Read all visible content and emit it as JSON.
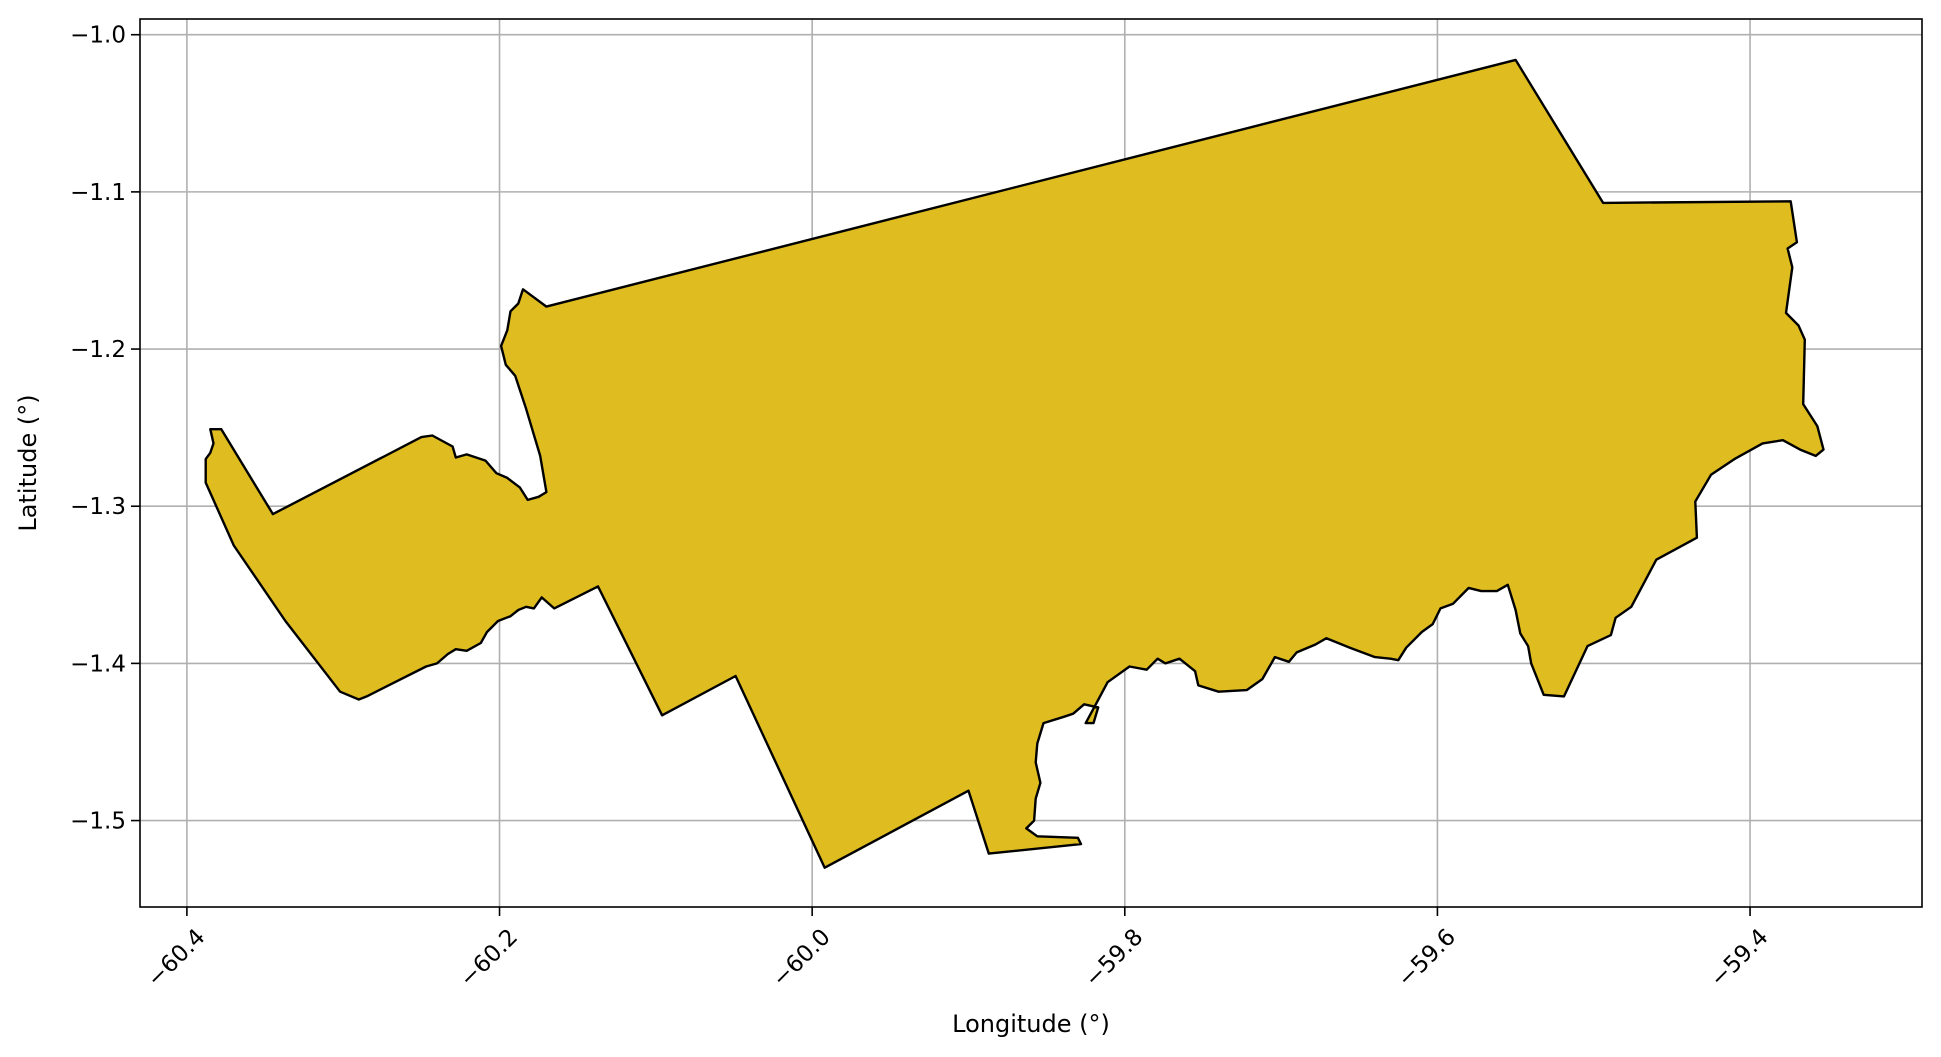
{
  "chart_data": {
    "type": "map",
    "xlabel": "Longitude (°)",
    "ylabel": "Latitude (°)",
    "xlim": [
      -60.43,
      -59.29
    ],
    "ylim": [
      -1.555,
      -0.99
    ],
    "xticks": [
      -60.4,
      -60.2,
      -60.0,
      -59.8,
      -59.6,
      -59.4
    ],
    "xtick_labels": [
      "−60.4",
      "−60.2",
      "−60.0",
      "−59.8",
      "−59.6",
      "−59.4"
    ],
    "yticks": [
      -1.0,
      -1.1,
      -1.2,
      -1.3,
      -1.4,
      -1.5
    ],
    "ytick_labels": [
      "−1.0",
      "−1.1",
      "−1.2",
      "−1.3",
      "−1.4",
      "−1.5"
    ],
    "grid": true,
    "fill_color": "#dfbd20",
    "edge_color": "#000000",
    "polygon": [
      [
        -60.385,
        -1.251
      ],
      [
        -60.378,
        -1.251
      ],
      [
        -60.345,
        -1.305
      ],
      [
        -60.25,
        -1.256
      ],
      [
        -60.243,
        -1.255
      ],
      [
        -60.23,
        -1.262
      ],
      [
        -60.228,
        -1.269
      ],
      [
        -60.221,
        -1.267
      ],
      [
        -60.209,
        -1.271
      ],
      [
        -60.202,
        -1.279
      ],
      [
        -60.195,
        -1.282
      ],
      [
        -60.187,
        -1.288
      ],
      [
        -60.182,
        -1.296
      ],
      [
        -60.175,
        -1.294
      ],
      [
        -60.17,
        -1.291
      ],
      [
        -60.174,
        -1.268
      ],
      [
        -60.183,
        -1.238
      ],
      [
        -60.19,
        -1.217
      ],
      [
        -60.196,
        -1.21
      ],
      [
        -60.199,
        -1.198
      ],
      [
        -60.195,
        -1.188
      ],
      [
        -60.193,
        -1.176
      ],
      [
        -60.188,
        -1.171
      ],
      [
        -60.185,
        -1.162
      ],
      [
        -60.17,
        -1.173
      ],
      [
        -59.55,
        -1.016
      ],
      [
        -59.494,
        -1.107
      ],
      [
        -59.374,
        -1.106
      ],
      [
        -59.37,
        -1.132
      ],
      [
        -59.376,
        -1.136
      ],
      [
        -59.373,
        -1.148
      ],
      [
        -59.377,
        -1.177
      ],
      [
        -59.369,
        -1.185
      ],
      [
        -59.365,
        -1.194
      ],
      [
        -59.366,
        -1.235
      ],
      [
        -59.357,
        -1.249
      ],
      [
        -59.353,
        -1.264
      ],
      [
        -59.358,
        -1.268
      ],
      [
        -59.368,
        -1.264
      ],
      [
        -59.379,
        -1.258
      ],
      [
        -59.392,
        -1.26
      ],
      [
        -59.41,
        -1.27
      ],
      [
        -59.425,
        -1.28
      ],
      [
        -59.435,
        -1.297
      ],
      [
        -59.434,
        -1.32
      ],
      [
        -59.46,
        -1.334
      ],
      [
        -59.476,
        -1.364
      ],
      [
        -59.486,
        -1.371
      ],
      [
        -59.489,
        -1.382
      ],
      [
        -59.504,
        -1.389
      ],
      [
        -59.519,
        -1.421
      ],
      [
        -59.532,
        -1.42
      ],
      [
        -59.54,
        -1.4
      ],
      [
        -59.542,
        -1.389
      ],
      [
        -59.547,
        -1.381
      ],
      [
        -59.55,
        -1.366
      ],
      [
        -59.555,
        -1.35
      ],
      [
        -59.562,
        -1.354
      ],
      [
        -59.572,
        -1.354
      ],
      [
        -59.58,
        -1.352
      ],
      [
        -59.59,
        -1.362
      ],
      [
        -59.598,
        -1.365
      ],
      [
        -59.603,
        -1.375
      ],
      [
        -59.61,
        -1.38
      ],
      [
        -59.62,
        -1.39
      ],
      [
        -59.625,
        -1.398
      ],
      [
        -59.63,
        -1.397
      ],
      [
        -59.64,
        -1.396
      ],
      [
        -59.656,
        -1.39
      ],
      [
        -59.671,
        -1.384
      ],
      [
        -59.678,
        -1.388
      ],
      [
        -59.69,
        -1.393
      ],
      [
        -59.695,
        -1.399
      ],
      [
        -59.704,
        -1.396
      ],
      [
        -59.712,
        -1.41
      ],
      [
        -59.722,
        -1.417
      ],
      [
        -59.74,
        -1.418
      ],
      [
        -59.753,
        -1.414
      ],
      [
        -59.755,
        -1.405
      ],
      [
        -59.765,
        -1.397
      ],
      [
        -59.774,
        -1.4
      ],
      [
        -59.779,
        -1.397
      ],
      [
        -59.786,
        -1.404
      ],
      [
        -59.797,
        -1.402
      ],
      [
        -59.811,
        -1.412
      ],
      [
        -59.818,
        -1.425
      ],
      [
        -59.825,
        -1.438
      ],
      [
        -59.82,
        -1.438
      ],
      [
        -59.817,
        -1.428
      ],
      [
        -59.826,
        -1.426
      ],
      [
        -59.833,
        -1.432
      ],
      [
        -59.839,
        -1.434
      ],
      [
        -59.852,
        -1.438
      ],
      [
        -59.856,
        -1.451
      ],
      [
        -59.857,
        -1.463
      ],
      [
        -59.854,
        -1.476
      ],
      [
        -59.857,
        -1.486
      ],
      [
        -59.858,
        -1.5
      ],
      [
        -59.863,
        -1.505
      ],
      [
        -59.856,
        -1.51
      ],
      [
        -59.83,
        -1.511
      ],
      [
        -59.828,
        -1.515
      ],
      [
        -59.887,
        -1.521
      ],
      [
        -59.9,
        -1.481
      ],
      [
        -59.992,
        -1.53
      ],
      [
        -60.049,
        -1.408
      ],
      [
        -60.096,
        -1.433
      ],
      [
        -60.137,
        -1.351
      ],
      [
        -60.165,
        -1.365
      ],
      [
        -60.173,
        -1.358
      ],
      [
        -60.178,
        -1.365
      ],
      [
        -60.183,
        -1.364
      ],
      [
        -60.188,
        -1.366
      ],
      [
        -60.193,
        -1.37
      ],
      [
        -60.201,
        -1.373
      ],
      [
        -60.208,
        -1.38
      ],
      [
        -60.212,
        -1.387
      ],
      [
        -60.221,
        -1.392
      ],
      [
        -60.228,
        -1.391
      ],
      [
        -60.233,
        -1.394
      ],
      [
        -60.24,
        -1.4
      ],
      [
        -60.247,
        -1.402
      ],
      [
        -60.285,
        -1.421
      ],
      [
        -60.29,
        -1.423
      ],
      [
        -60.302,
        -1.418
      ],
      [
        -60.337,
        -1.373
      ],
      [
        -60.37,
        -1.325
      ],
      [
        -60.388,
        -1.285
      ],
      [
        -60.388,
        -1.27
      ],
      [
        -60.385,
        -1.266
      ],
      [
        -60.383,
        -1.26
      ]
    ]
  }
}
